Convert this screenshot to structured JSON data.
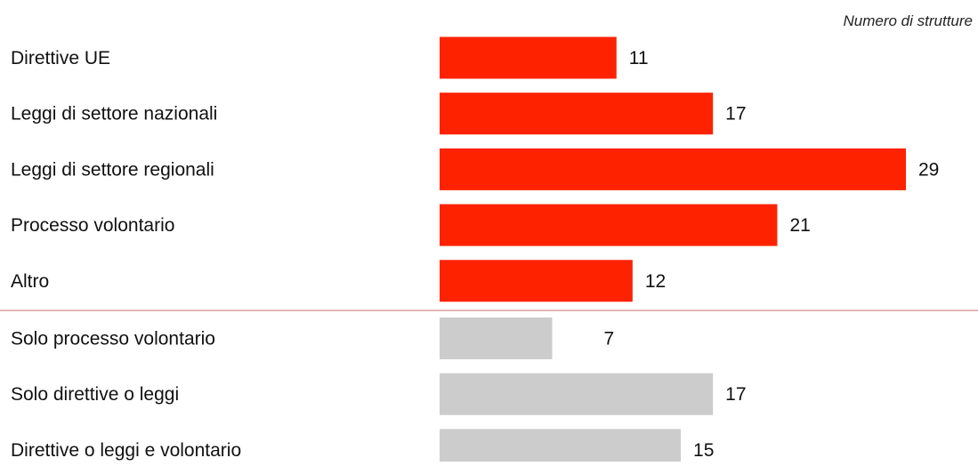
{
  "chart_data": {
    "type": "bar",
    "orientation": "horizontal",
    "unit_label": "Numero di strutture",
    "groups": [
      {
        "color": "#ff2200",
        "categories": [
          "Direttive UE",
          "Leggi di settore nazionali",
          "Leggi di settore regionali",
          "Processo volontario",
          "Altro"
        ],
        "values": [
          11,
          17,
          29,
          21,
          12
        ]
      },
      {
        "color": "#cccccc",
        "categories": [
          "Solo processo volontario",
          "Solo direttive o leggi",
          "Direttive o leggi e volontario"
        ],
        "values": [
          7,
          17,
          15
        ]
      }
    ],
    "separator_color": "#d9a0a0",
    "xlim": [
      0,
      29
    ]
  }
}
